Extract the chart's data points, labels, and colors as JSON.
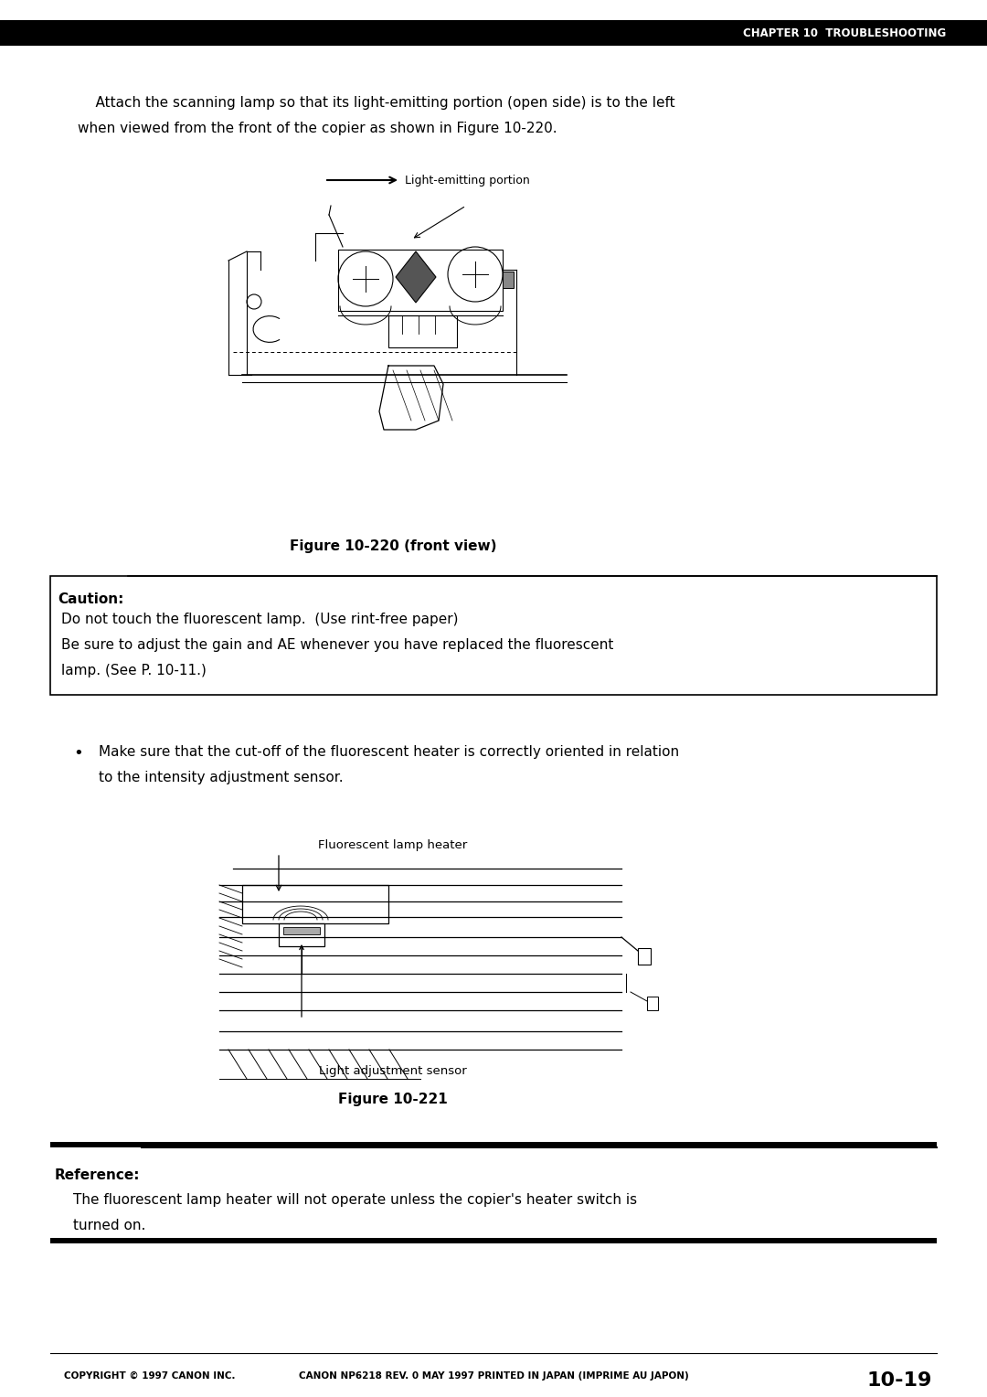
{
  "page_width": 10.8,
  "page_height": 15.28,
  "bg_color": "#ffffff",
  "header_bar_color": "#000000",
  "header_text": "CHAPTER 10  TROUBLESHOOTING",
  "header_text_color": "#ffffff",
  "body_text_color": "#000000",
  "main_para_line1": "    Attach the scanning lamp so that its light-emitting portion (open side) is to the left",
  "main_para_line2": "when viewed from the front of the copier as shown in Figure 10-220.",
  "fig220_label": "Light-emitting portion",
  "fig220_caption": "Figure 10-220 (front view)",
  "caution_title": "Caution:",
  "caution_line1": "Do not touch the fluorescent lamp.  (Use rint-free paper)",
  "caution_line2": "Be sure to adjust the gain and AE whenever you have replaced the fluorescent",
  "caution_line3": "lamp. (See P. 10-11.)",
  "bullet_text_line1": "Make sure that the cut-off of the fluorescent heater is correctly oriented in relation",
  "bullet_text_line2": "to the intensity adjustment sensor.",
  "fig221_label_top": "Fluorescent lamp heater",
  "fig221_label_bottom": "Light adjustment sensor",
  "fig221_caption": "Figure 10-221",
  "reference_title": "Reference:",
  "reference_line1": "The fluorescent lamp heater will not operate unless the copier's heater switch is",
  "reference_line2": "turned on.",
  "footer_left": "COPYRIGHT © 1997 CANON INC.",
  "footer_center": "CANON NP6218 REV. 0 MAY 1997 PRINTED IN JAPAN (IMPRIME AU JAPON)",
  "footer_right": "10-19"
}
